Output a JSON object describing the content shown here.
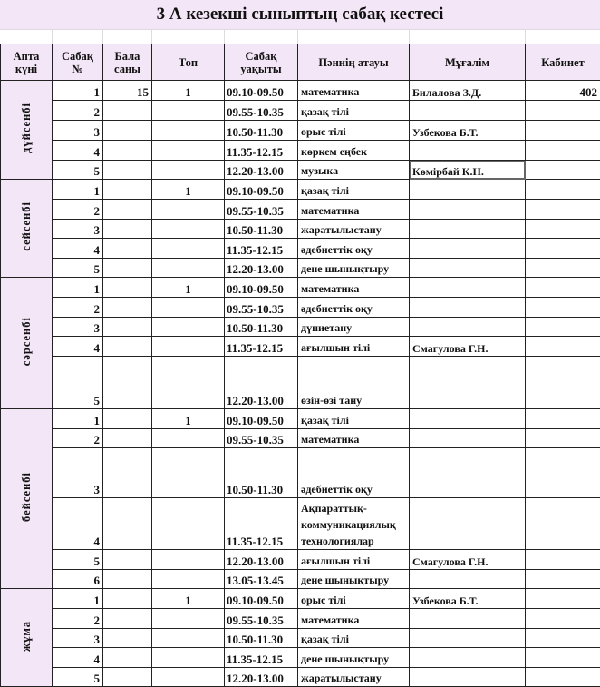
{
  "title": "3 А кезекші сыныптың сабақ кестесі",
  "headers": [
    "Апта күні",
    "Сабақ №",
    "Бала саны",
    "Топ",
    "Сабақ уақыты",
    "Пәннің атауы",
    "Мұғалім",
    "Кабинет"
  ],
  "selected_cell": "Көмірбай К.Н.",
  "days": [
    {
      "name": "дүйсенбі",
      "lessons": [
        {
          "n": "1",
          "count": "15",
          "group": "1",
          "time": "09.10-09.50",
          "subject": "математика",
          "teacher": "Билалова З.Д.",
          "room": "402"
        },
        {
          "n": "2",
          "count": "",
          "group": "",
          "time": "09.55-10.35",
          "subject": "қазақ тілі",
          "teacher": "",
          "room": ""
        },
        {
          "n": "3",
          "count": "",
          "group": "",
          "time": "10.50-11.30",
          "subject": "орыс тілі",
          "teacher": "Узбекова Б.Т.",
          "room": ""
        },
        {
          "n": "4",
          "count": "",
          "group": "",
          "time": "11.35-12.15",
          "subject": "көркем еңбек",
          "teacher": "",
          "room": ""
        },
        {
          "n": "5",
          "count": "",
          "group": "",
          "time": "12.20-13.00",
          "subject": "музыка",
          "teacher": "Көмірбай К.Н.",
          "room": ""
        }
      ]
    },
    {
      "name": "сейсенбі",
      "lessons": [
        {
          "n": "1",
          "count": "",
          "group": "1",
          "time": "09.10-09.50",
          "subject": "қазақ тілі",
          "teacher": "",
          "room": ""
        },
        {
          "n": "2",
          "count": "",
          "group": "",
          "time": "09.55-10.35",
          "subject": "математика",
          "teacher": "",
          "room": ""
        },
        {
          "n": "3",
          "count": "",
          "group": "",
          "time": "10.50-11.30",
          "subject": "жаратылыстану",
          "teacher": "",
          "room": ""
        },
        {
          "n": "4",
          "count": "",
          "group": "",
          "time": "11.35-12.15",
          "subject": "әдебиеттік оқу",
          "teacher": "",
          "room": ""
        },
        {
          "n": "5",
          "count": "",
          "group": "",
          "time": "12.20-13.00",
          "subject": "дене шынықтыру",
          "teacher": "",
          "room": ""
        }
      ]
    },
    {
      "name": "сәрсенбі",
      "lessons": [
        {
          "n": "1",
          "count": "",
          "group": "1",
          "time": "09.10-09.50",
          "subject": "математика",
          "teacher": "",
          "room": ""
        },
        {
          "n": "2",
          "count": "",
          "group": "",
          "time": "09.55-10.35",
          "subject": "әдебиеттік оқу",
          "teacher": "",
          "room": ""
        },
        {
          "n": "3",
          "count": "",
          "group": "",
          "time": "10.50-11.30",
          "subject": "дүниетану",
          "teacher": "",
          "room": ""
        },
        {
          "n": "4",
          "count": "",
          "group": "",
          "time": "11.35-12.15",
          "subject": "ағылшын тілі",
          "teacher": "Смагулова Г.Н.",
          "room": ""
        },
        {
          "n": "5",
          "count": "",
          "group": "",
          "time": "12.20-13.00",
          "subject": "өзін-өзі тану",
          "teacher": "",
          "room": ""
        }
      ]
    },
    {
      "name": "бейсенбі",
      "lessons": [
        {
          "n": "1",
          "count": "",
          "group": "1",
          "time": "09.10-09.50",
          "subject": "қазақ тілі",
          "teacher": "",
          "room": ""
        },
        {
          "n": "2",
          "count": "",
          "group": "",
          "time": "09.55-10.35",
          "subject": "математика",
          "teacher": "",
          "room": ""
        },
        {
          "n": "3",
          "count": "",
          "group": "",
          "time": "10.50-11.30",
          "subject": "әдебиеттік оқу",
          "teacher": "",
          "room": ""
        },
        {
          "n": "4",
          "count": "",
          "group": "",
          "time": "11.35-12.15",
          "subject": "Ақпараттық-коммуникациялық технологиялар",
          "teacher": "",
          "room": ""
        },
        {
          "n": "5",
          "count": "",
          "group": "",
          "time": "12.20-13.00",
          "subject": "ағылшын тілі",
          "teacher": "Смагулова Г.Н.",
          "room": ""
        },
        {
          "n": "6",
          "count": "",
          "group": "",
          "time": "13.05-13.45",
          "subject": "дене шынықтыру",
          "teacher": "",
          "room": ""
        }
      ]
    },
    {
      "name": "жұма",
      "lessons": [
        {
          "n": "1",
          "count": "",
          "group": "1",
          "time": "09.10-09.50",
          "subject": "орыс тілі",
          "teacher": "Узбекова Б.Т.",
          "room": ""
        },
        {
          "n": "2",
          "count": "",
          "group": "",
          "time": "09.55-10.35",
          "subject": "математика",
          "teacher": "",
          "room": ""
        },
        {
          "n": "3",
          "count": "",
          "group": "",
          "time": "10.50-11.30",
          "subject": "қазақ тілі",
          "teacher": "",
          "room": ""
        },
        {
          "n": "4",
          "count": "",
          "group": "",
          "time": "11.35-12.15",
          "subject": "дене шынықтыру",
          "teacher": "",
          "room": ""
        },
        {
          "n": "5",
          "count": "",
          "group": "",
          "time": "12.20-13.00",
          "subject": "жаратылыстану",
          "teacher": "",
          "room": ""
        }
      ]
    }
  ]
}
